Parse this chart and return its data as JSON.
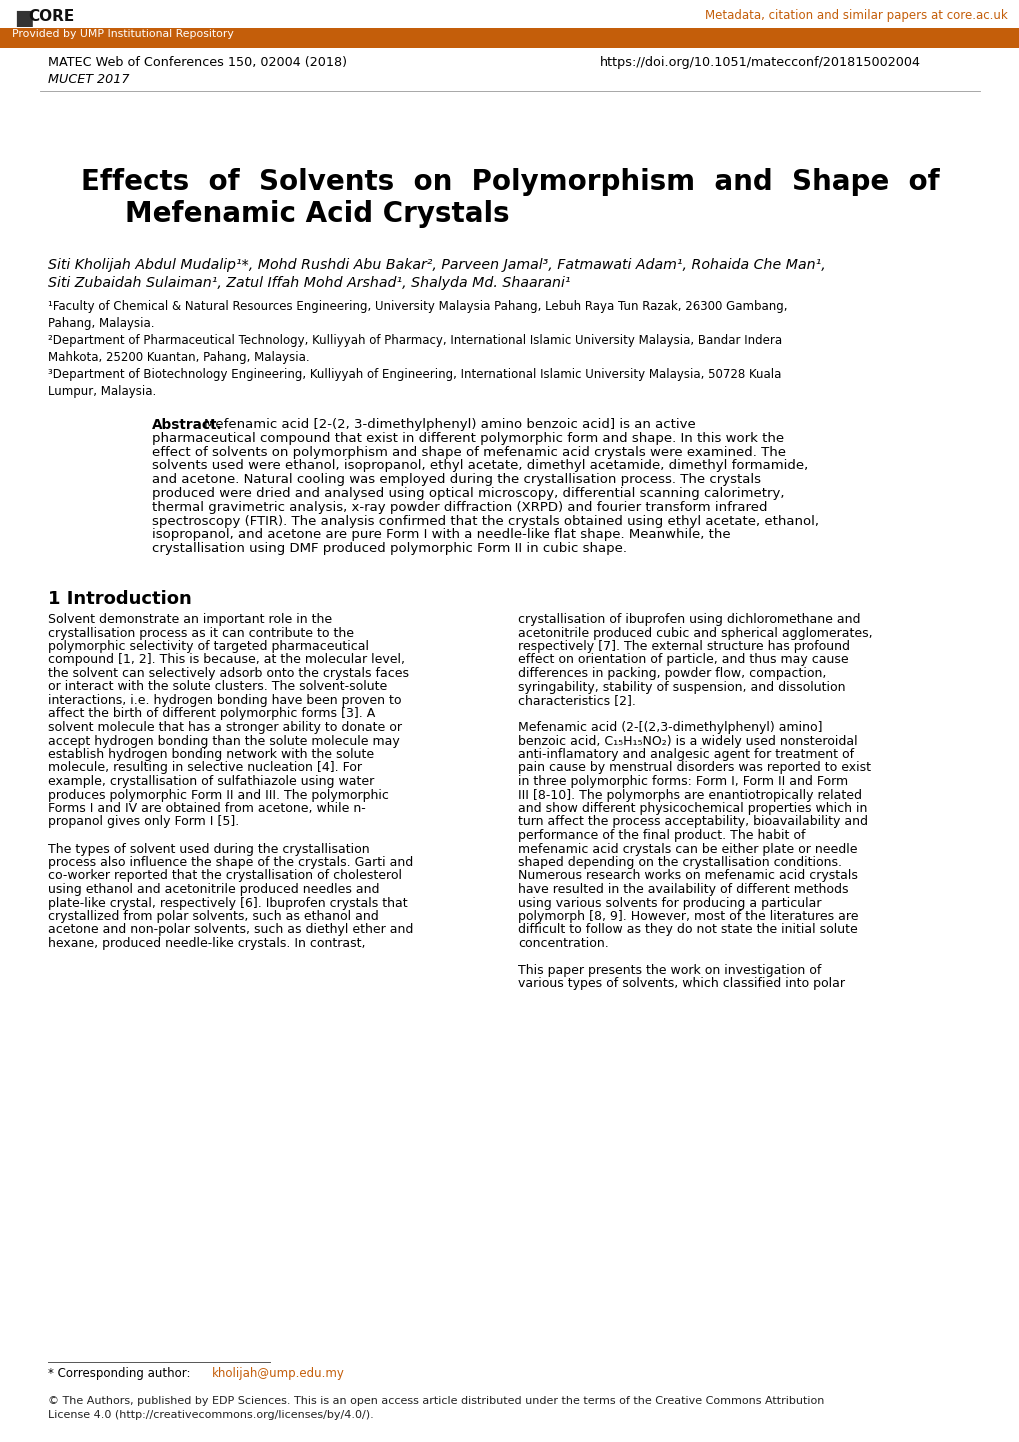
{
  "bg_color": "#ffffff",
  "header_bar_color": "#c45e0a",
  "core_link_color": "#c45e0a",
  "core_link_text": "Metadata, citation and similar papers at core.ac.uk",
  "bar_text": "Provided by UMP Institutional Repository",
  "bar_text_color": "#ffffff",
  "journal_line1": "MATEC Web of Conferences 150, 02004 (2018)",
  "journal_line2": "MUCET 2017",
  "doi_text": "https://doi.org/10.1051/matecconf/201815002004",
  "separator_color": "#999999",
  "title_line1": "Effects  of  Solvents  on  Polymorphism  and  Shape  of",
  "title_line2": "Mefenamic Acid Crystals",
  "authors_line1": "Siti Kholijah Abdul Mudalip¹*, Mohd Rushdi Abu Bakar², Parveen Jamal³, Fatmawati Adam¹, Rohaida Che Man¹,",
  "authors_line2": "Siti Zubaidah Sulaiman¹, Zatul Iffah Mohd Arshad¹, Shalyda Md. Shaarani¹",
  "affil1": "¹Faculty of Chemical & Natural Resources Engineering, University Malaysia Pahang, Lebuh Raya Tun Razak, 26300 Gambang,\nPahang, Malaysia.",
  "affil2": "²Department of Pharmaceutical Technology, Kulliyyah of Pharmacy, International Islamic University Malaysia, Bandar Indera\nMahkota, 25200 Kuantan, Pahang, Malaysia.",
  "affil3": "³Department of Biotechnology Engineering, Kulliyyah of Engineering, International Islamic University Malaysia, 50728 Kuala\nLumpur, Malaysia.",
  "abstract_label": "Abstract.",
  "abstract_lines": [
    "  Mefenamic acid [2-(2, 3-dimethylphenyl) amino benzoic acid] is an active",
    "pharmaceutical compound that exist in different polymorphic form and shape. In this work the",
    "effect of solvents on polymorphism and shape of mefenamic acid crystals were examined. The",
    "solvents used were ethanol, isopropanol, ethyl acetate, dimethyl acetamide, dimethyl formamide,",
    "and acetone. Natural cooling was employed during the crystallisation process. The crystals",
    "produced were dried and analysed using optical microscopy, differential scanning calorimetry,",
    "thermal gravimetric analysis, x-ray powder diffraction (XRPD) and fourier transform infrared",
    "spectroscopy (FTIR). The analysis confirmed that the crystals obtained using ethyl acetate, ethanol,",
    "isopropanol, and acetone are pure Form I with a needle-like flat shape. Meanwhile, the",
    "crystallisation using DMF produced polymorphic Form II in cubic shape."
  ],
  "section1_title": "1 Introduction",
  "col1_lines": [
    "Solvent demonstrate an important role in the",
    "crystallisation process as it can contribute to the",
    "polymorphic selectivity of targeted pharmaceutical",
    "compound [1, 2]. This is because, at the molecular level,",
    "the solvent can selectively adsorb onto the crystals faces",
    "or interact with the solute clusters. The solvent-solute",
    "interactions, i.e. hydrogen bonding have been proven to",
    "affect the birth of different polymorphic forms [3]. A",
    "solvent molecule that has a stronger ability to donate or",
    "accept hydrogen bonding than the solute molecule may",
    "establish hydrogen bonding network with the solute",
    "molecule, resulting in selective nucleation [4]. For",
    "example, crystallisation of sulfathiazole using water",
    "produces polymorphic Form II and III. The polymorphic",
    "Forms I and IV are obtained from acetone, while n-",
    "propanol gives only Form I [5].",
    "",
    "The types of solvent used during the crystallisation",
    "process also influence the shape of the crystals. Garti and",
    "co-worker reported that the crystallisation of cholesterol",
    "using ethanol and acetonitrile produced needles and",
    "plate-like crystal, respectively [6]. Ibuprofen crystals that",
    "crystallized from polar solvents, such as ethanol and",
    "acetone and non-polar solvents, such as diethyl ether and",
    "hexane, produced needle-like crystals. In contrast,"
  ],
  "col2_lines": [
    "crystallisation of ibuprofen using dichloromethane and",
    "acetonitrile produced cubic and spherical agglomerates,",
    "respectively [7]. The external structure has profound",
    "effect on orientation of particle, and thus may cause",
    "differences in packing, powder flow, compaction,",
    "syringability, stability of suspension, and dissolution",
    "characteristics [2].",
    "",
    "Mefenamic acid (2-[(2,3-dimethylphenyl) amino]",
    "benzoic acid, C₁₅H₁₅NO₂) is a widely used nonsteroidal",
    "anti-inflamatory and analgesic agent for treatment of",
    "pain cause by menstrual disorders was reported to exist",
    "in three polymorphic forms: Form I, Form II and Form",
    "III [8-10]. The polymorphs are enantiotropically related",
    "and show different physicochemical properties which in",
    "turn affect the process acceptability, bioavailability and",
    "performance of the final product. The habit of",
    "mefenamic acid crystals can be either plate or needle",
    "shaped depending on the crystallisation conditions.",
    "Numerous research works on mefenamic acid crystals",
    "have resulted in the availability of different methods",
    "using various solvents for producing a particular",
    "polymorph [8, 9]. However, most of the literatures are",
    "difficult to follow as they do not state the initial solute",
    "concentration.",
    "",
    "This paper presents the work on investigation of",
    "various types of solvents, which classified into polar"
  ],
  "footnote_prefix": "* Corresponding author: ",
  "footnote_link": "kholijah@ump.edu.my",
  "copyright": "© The Authors, published by EDP Sciences. This is an open access article distributed under the terms of the Creative Commons Attribution\nLicense 4.0 (http://creativecommons.org/licenses/by/4.0/)."
}
